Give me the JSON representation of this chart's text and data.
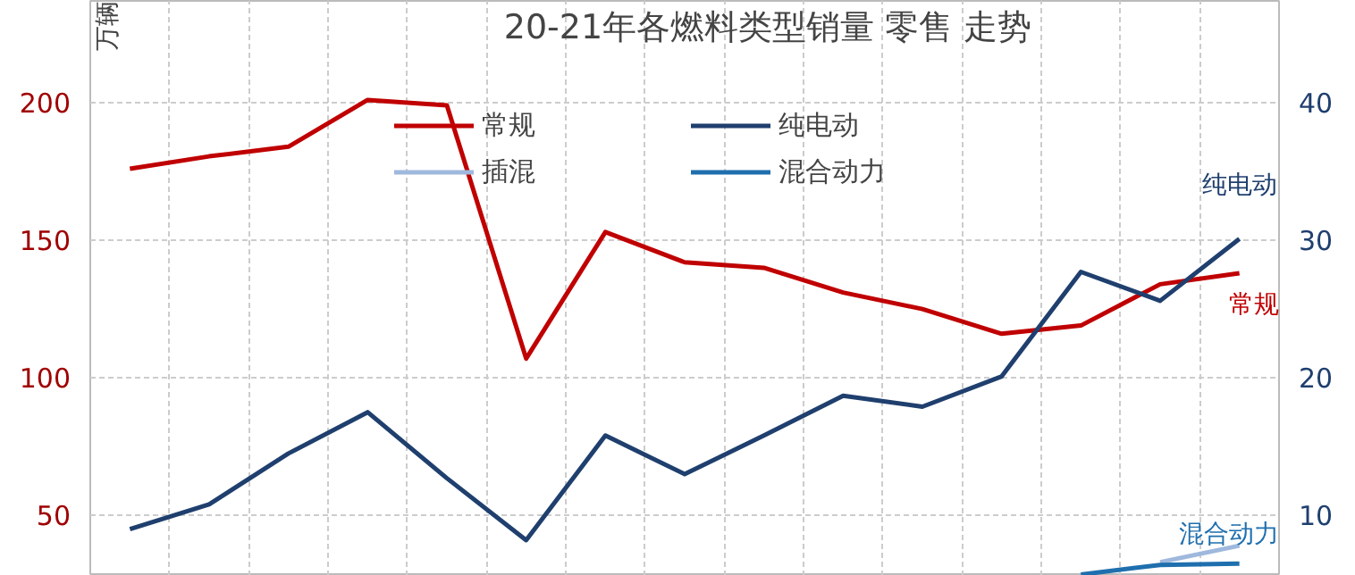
{
  "chart_data": {
    "type": "line",
    "title": "20-21年各燃料类型销量 零售 走势",
    "ylabel": "万辆",
    "categories": [
      null,
      null,
      null,
      null,
      null,
      null,
      null,
      null,
      null,
      null,
      null,
      null,
      null,
      null,
      null
    ],
    "series": [
      {
        "name": "常规",
        "color": "#c00000",
        "values": [
          176,
          180.5,
          184,
          201,
          199,
          107,
          153,
          142,
          140,
          131,
          125,
          116,
          119,
          134,
          138
        ]
      },
      {
        "name": "纯电动",
        "color": "#1f3f6e",
        "axis": "y2",
        "values": [
          9.0,
          10.8,
          14.5,
          17.5,
          12.7,
          8.2,
          15.8,
          13.0,
          15.8,
          18.7,
          17.9,
          20.1,
          27.7,
          25.6,
          30.1
        ]
      },
      {
        "name": "插混",
        "color": "#9fb8dd",
        "axis": "y2",
        "values": [
          null,
          null,
          null,
          null,
          null,
          null,
          null,
          null,
          null,
          null,
          null,
          null,
          null,
          6.6,
          7.8
        ]
      },
      {
        "name": "混合动力",
        "color": "#1f6fae",
        "axis": "y2",
        "values": [
          null,
          null,
          null,
          null,
          null,
          null,
          null,
          null,
          null,
          null,
          null,
          null,
          5.7,
          6.4,
          6.5
        ]
      }
    ],
    "annotations": [
      "纯电动",
      "常规",
      "混合动力"
    ],
    "ylim": [
      28,
      237
    ],
    "yticks": [
      50,
      100,
      150,
      200
    ],
    "y2lim": [
      5.6,
      47.4
    ],
    "y2ticks": [
      10,
      20,
      30,
      40
    ],
    "grid": true,
    "legend": "top",
    "tick_labels": "y"
  }
}
